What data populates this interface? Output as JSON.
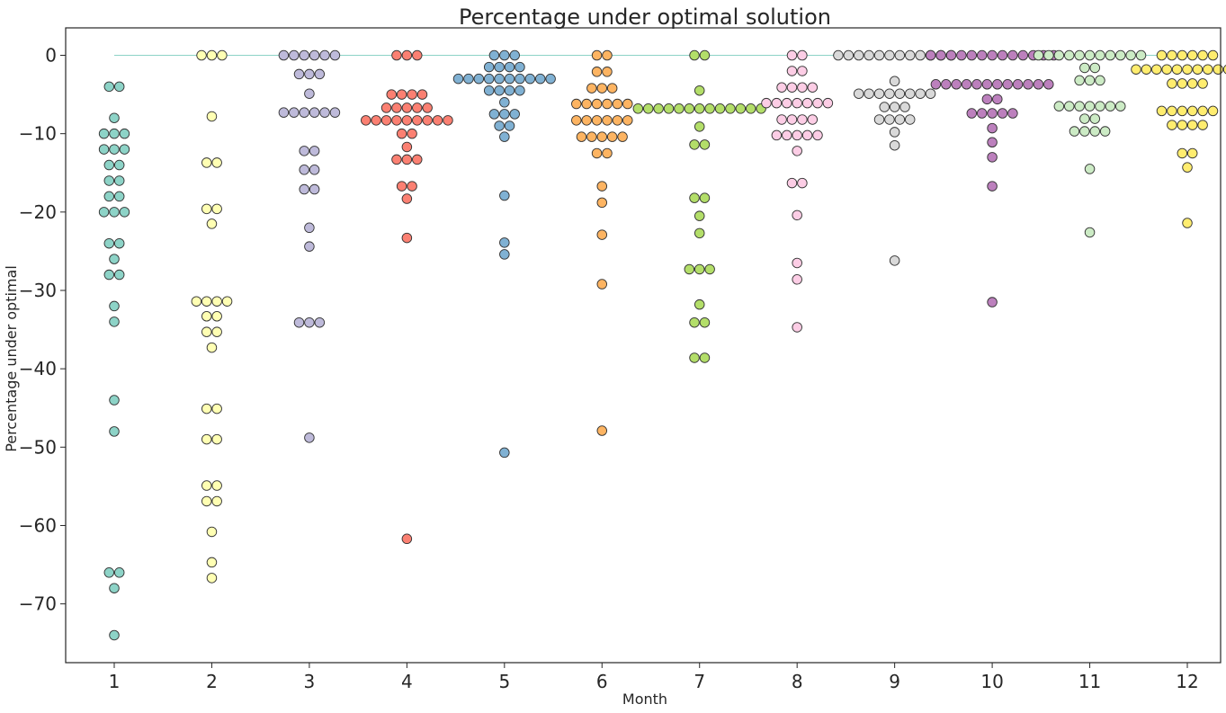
{
  "chart_data": {
    "type": "scatter",
    "title": "Percentage under optimal solution",
    "xlabel": "Month",
    "ylabel": "Percentage under optimal",
    "categories": [
      "1",
      "2",
      "3",
      "4",
      "5",
      "6",
      "7",
      "8",
      "9",
      "10",
      "11",
      "12"
    ],
    "ylim": [
      -77.5,
      3.5
    ],
    "yticks": [
      0,
      -10,
      -20,
      -30,
      -40,
      -50,
      -60,
      -70
    ],
    "ytick_labels": [
      "0",
      "−10",
      "−20",
      "−30",
      "−40",
      "−50",
      "−60",
      "−70"
    ],
    "grid": false,
    "reference_line": {
      "y": 0,
      "color": "#8dd3c7"
    },
    "series": [
      {
        "category": "1",
        "color": "#8dd3c7",
        "values": [
          -4,
          -4,
          -8,
          -10,
          -10,
          -10,
          -12,
          -12,
          -12,
          -14,
          -14,
          -16,
          -16,
          -18,
          -18,
          -20,
          -20,
          -20,
          -24,
          -24,
          -26,
          -28,
          -28,
          -32,
          -34,
          -44,
          -48,
          -66,
          -66,
          -68,
          -74
        ]
      },
      {
        "category": "2",
        "color": "#ffffb3",
        "values": [
          0,
          0,
          0,
          -7.8,
          -13.7,
          -13.7,
          -19.6,
          -19.6,
          -21.5,
          -31.4,
          -31.4,
          -31.4,
          -31.4,
          -33.3,
          -33.3,
          -35.3,
          -35.3,
          -37.3,
          -45.1,
          -45.1,
          -49,
          -49,
          -54.9,
          -54.9,
          -56.9,
          -56.9,
          -60.8,
          -64.7,
          -66.7
        ]
      },
      {
        "category": "3",
        "color": "#bebada",
        "values": [
          0,
          0,
          0,
          0,
          0,
          0,
          -2.4,
          -2.4,
          -2.4,
          -4.9,
          -7.3,
          -7.3,
          -7.3,
          -7.3,
          -7.3,
          -7.3,
          -12.2,
          -12.2,
          -14.6,
          -14.6,
          -17.1,
          -17.1,
          -22,
          -24.4,
          -34.1,
          -34.1,
          -34.1,
          -48.8
        ]
      },
      {
        "category": "4",
        "color": "#fb8072",
        "values": [
          0,
          0,
          0,
          -5,
          -5,
          -5,
          -5,
          -6.7,
          -6.7,
          -6.7,
          -6.7,
          -6.7,
          -8.3,
          -8.3,
          -8.3,
          -8.3,
          -8.3,
          -8.3,
          -8.3,
          -8.3,
          -8.3,
          -10,
          -10,
          -11.7,
          -13.3,
          -13.3,
          -13.3,
          -16.7,
          -16.7,
          -18.3,
          -23.3,
          -61.7
        ]
      },
      {
        "category": "5",
        "color": "#80b1d3",
        "values": [
          0,
          0,
          0,
          -1.5,
          -1.5,
          -1.5,
          -1.5,
          -3,
          -3,
          -3,
          -3,
          -3,
          -3,
          -3,
          -3,
          -3,
          -3,
          -4.5,
          -4.5,
          -4.5,
          -4.5,
          -6,
          -7.5,
          -7.5,
          -7.5,
          -9,
          -9,
          -10.4,
          -17.9,
          -23.9,
          -25.4,
          -50.7
        ]
      },
      {
        "category": "6",
        "color": "#fdb462",
        "values": [
          0,
          0,
          -2.1,
          -2.1,
          -4.2,
          -4.2,
          -4.2,
          -6.2,
          -6.2,
          -6.2,
          -6.2,
          -6.2,
          -6.2,
          -8.3,
          -8.3,
          -8.3,
          -8.3,
          -8.3,
          -8.3,
          -10.4,
          -10.4,
          -10.4,
          -10.4,
          -10.4,
          -12.5,
          -12.5,
          -16.7,
          -18.8,
          -22.9,
          -29.2,
          -47.9
        ]
      },
      {
        "category": "7",
        "color": "#b3de69",
        "values": [
          0,
          0,
          -4.5,
          -6.8,
          -6.8,
          -6.8,
          -6.8,
          -6.8,
          -6.8,
          -6.8,
          -6.8,
          -6.8,
          -6.8,
          -6.8,
          -6.8,
          -6.8,
          -9.1,
          -11.4,
          -11.4,
          -18.2,
          -18.2,
          -20.5,
          -22.7,
          -27.3,
          -27.3,
          -27.3,
          -31.8,
          -34.1,
          -34.1,
          -38.6,
          -38.6
        ]
      },
      {
        "category": "8",
        "color": "#fccde5",
        "values": [
          0,
          0,
          -2,
          -2,
          -4.1,
          -4.1,
          -4.1,
          -4.1,
          -6.1,
          -6.1,
          -6.1,
          -6.1,
          -6.1,
          -6.1,
          -6.1,
          -8.2,
          -8.2,
          -8.2,
          -8.2,
          -10.2,
          -10.2,
          -10.2,
          -10.2,
          -10.2,
          -12.2,
          -16.3,
          -16.3,
          -20.4,
          -26.5,
          -28.6,
          -34.7
        ]
      },
      {
        "category": "9",
        "color": "#d9d9d9",
        "values": [
          0,
          0,
          0,
          0,
          0,
          0,
          0,
          0,
          0,
          0,
          0,
          0,
          -3.3,
          -4.9,
          -4.9,
          -4.9,
          -4.9,
          -4.9,
          -4.9,
          -4.9,
          -4.9,
          -6.6,
          -6.6,
          -6.6,
          -8.2,
          -8.2,
          -8.2,
          -8.2,
          -9.8,
          -11.5,
          -26.2
        ]
      },
      {
        "category": "10",
        "color": "#bc80bd",
        "values": [
          0,
          0,
          0,
          0,
          0,
          0,
          0,
          0,
          0,
          0,
          0,
          0,
          0,
          -3.7,
          -3.7,
          -3.7,
          -3.7,
          -3.7,
          -3.7,
          -3.7,
          -3.7,
          -3.7,
          -3.7,
          -3.7,
          -3.7,
          -5.6,
          -5.6,
          -7.4,
          -7.4,
          -7.4,
          -7.4,
          -7.4,
          -9.3,
          -11.1,
          -13,
          -16.7,
          -31.5
        ]
      },
      {
        "category": "11",
        "color": "#ccebc5",
        "values": [
          0,
          0,
          0,
          0,
          0,
          0,
          0,
          0,
          0,
          0,
          0,
          -1.6,
          -1.6,
          -3.2,
          -3.2,
          -3.2,
          -6.5,
          -6.5,
          -6.5,
          -6.5,
          -6.5,
          -6.5,
          -6.5,
          -8.1,
          -8.1,
          -9.7,
          -9.7,
          -9.7,
          -9.7,
          -14.5,
          -22.6
        ]
      },
      {
        "category": "12",
        "color": "#ffed6f",
        "values": [
          0,
          0,
          0,
          0,
          0,
          0,
          -1.8,
          -1.8,
          -1.8,
          -1.8,
          -1.8,
          -1.8,
          -1.8,
          -1.8,
          -1.8,
          -1.8,
          -1.8,
          -3.6,
          -3.6,
          -3.6,
          -3.6,
          -7.1,
          -7.1,
          -7.1,
          -7.1,
          -7.1,
          -7.1,
          -8.9,
          -8.9,
          -8.9,
          -8.9,
          -12.5,
          -12.5,
          -14.3,
          -21.4
        ]
      }
    ]
  }
}
